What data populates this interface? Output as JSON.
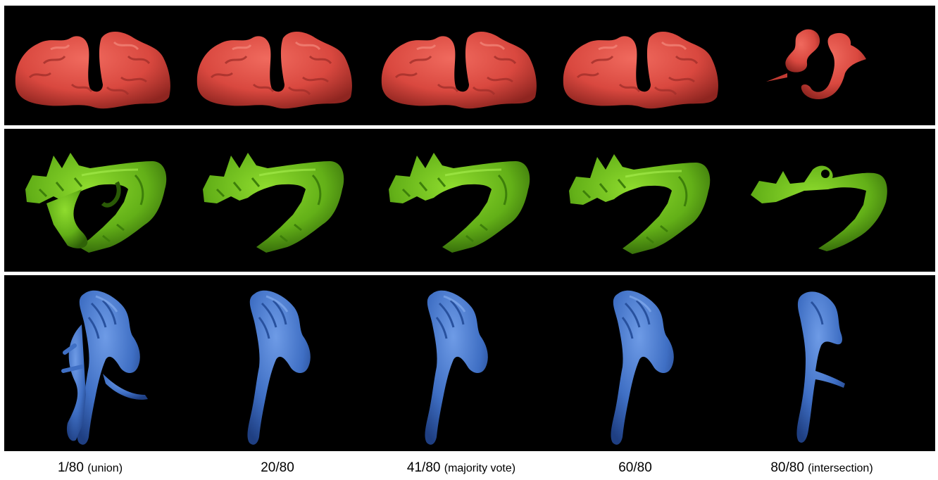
{
  "figure": {
    "colors": {
      "red_structure": "#d9483f",
      "green_structure": "#63b018",
      "blue_structure": "#3f6fc4",
      "panel_background": "#000000",
      "page_background": "#ffffff"
    },
    "rows": [
      {
        "name": "red-structure-row",
        "icon": "coronal-brain-render",
        "color": "#d9483f"
      },
      {
        "name": "green-structure-row",
        "icon": "lateral-tract-render",
        "color": "#63b018"
      },
      {
        "name": "blue-structure-row",
        "icon": "sagittal-tract-render",
        "color": "#3f6fc4"
      }
    ],
    "columns": [
      {
        "main": "1/80",
        "sub": "(union)"
      },
      {
        "main": "20/80",
        "sub": ""
      },
      {
        "main": "41/80",
        "sub": "(majority vote)"
      },
      {
        "main": "60/80",
        "sub": ""
      },
      {
        "main": "80/80",
        "sub": "(intersection)"
      }
    ]
  }
}
